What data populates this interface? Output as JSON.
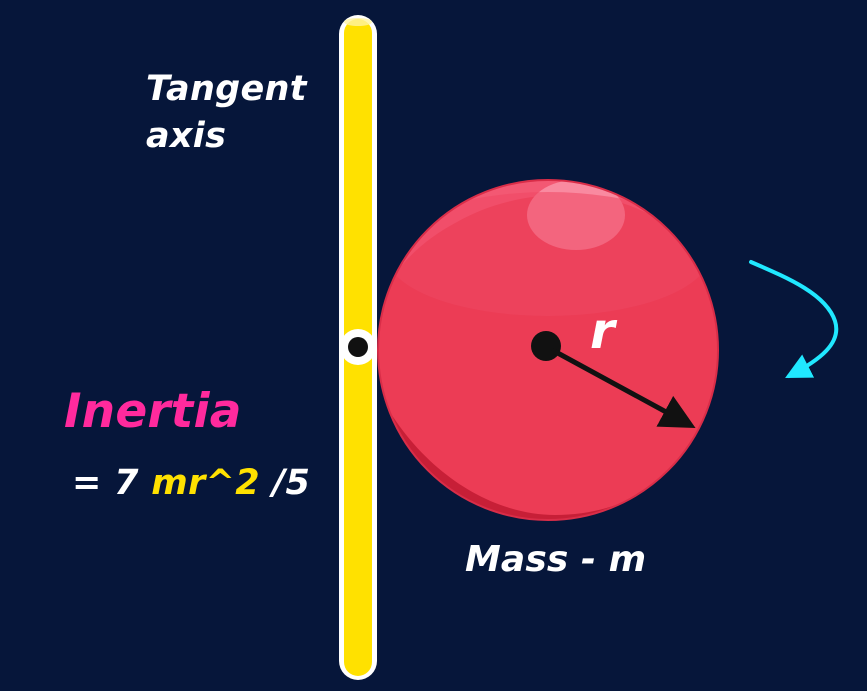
{
  "axis_label": {
    "line1": "Tangent",
    "line2": "axis"
  },
  "radius_label": "r",
  "inertia": {
    "title": "Inertia",
    "prefix": "= 7 ",
    "highlight": "mr^2",
    "suffix": " /5"
  },
  "mass_label": "Mass - m",
  "colors": {
    "background": "#06163a",
    "axis_rod": "#ffe100",
    "sphere": "#e7344f",
    "inertia_title": "#ff2a9d",
    "formula_highlight": "#ffe100",
    "rotation_arrow": "#1be3ff"
  },
  "icons": {
    "rotation": "curved-arrow-icon",
    "radius": "radius-arrow-icon",
    "contact": "contact-point-icon"
  }
}
